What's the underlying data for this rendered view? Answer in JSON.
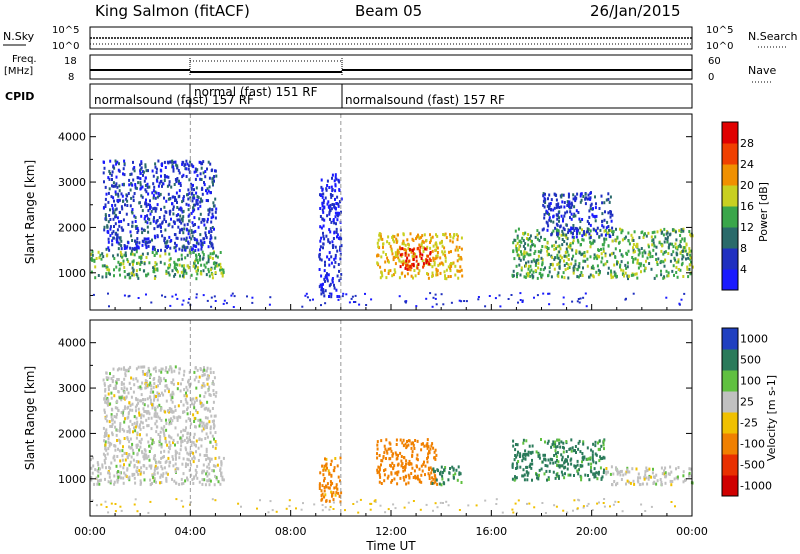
{
  "header": {
    "station": "King Salmon (fitACF)",
    "beam": "Beam 05",
    "date": "26/Jan/2015"
  },
  "status": {
    "nsky_label": "N.Sky",
    "nsky_ticks": [
      "10^5",
      "10^0"
    ],
    "nsearch_label": "N.Search",
    "freq_label": "Freq.",
    "freq_unit": "[MHz]",
    "freq_ticks": [
      "18",
      "8"
    ],
    "nave_label": "Nave",
    "nave_ticks": [
      "60",
      "0"
    ],
    "cpid_label": "CPID",
    "cpid_segments": [
      {
        "text": "normalsound (fast) 157 RF",
        "start": 0,
        "end": 4
      },
      {
        "text": "normal (fast) 151 RF",
        "start": 4,
        "end": 10
      },
      {
        "text": "normalsound (fast) 157 RF",
        "start": 10,
        "end": 24
      }
    ]
  },
  "chart_data": [
    {
      "type": "heatmap",
      "parameter": "Power",
      "colorbar_label": "Power [dB]",
      "colorbar_ticks": [
        "4",
        "8",
        "12",
        "16",
        "20",
        "24",
        "28"
      ],
      "colorbar_range": [
        0,
        32
      ],
      "xlabel": "Time UT",
      "ylabel": "Slant Range [km]",
      "xlim": [
        0,
        24
      ],
      "ylim": [
        180,
        4500
      ],
      "x_ticks": [
        "00:00",
        "04:00",
        "08:00",
        "12:00",
        "16:00",
        "20:00",
        "00:00"
      ],
      "y_ticks": [
        1000,
        2000,
        3000,
        4000
      ],
      "echo_regions": [
        {
          "t": [
            0.0,
            5.3
          ],
          "range_km": [
            900,
            1500
          ],
          "value": 14
        },
        {
          "t": [
            0.5,
            5.0
          ],
          "range_km": [
            1500,
            3500
          ],
          "value": 6
        },
        {
          "t": [
            9.1,
            10.0
          ],
          "range_km": [
            500,
            3200
          ],
          "value": 4
        },
        {
          "t": [
            11.4,
            14.8
          ],
          "range_km": [
            900,
            1900
          ],
          "value": 20
        },
        {
          "t": [
            12.3,
            13.6
          ],
          "range_km": [
            1100,
            1600
          ],
          "value": 28
        },
        {
          "t": [
            16.8,
            24.0
          ],
          "range_km": [
            900,
            2000
          ],
          "value": 14
        },
        {
          "t": [
            18.0,
            20.8
          ],
          "range_km": [
            1800,
            2800
          ],
          "value": 6
        }
      ]
    },
    {
      "type": "heatmap",
      "parameter": "Velocity",
      "colorbar_label": "Velocity [m s-1]",
      "colorbar_ticks": [
        "1000",
        "500",
        "100",
        "25",
        "-25",
        "-100",
        "-500",
        "-1000"
      ],
      "xlabel": "Time UT",
      "ylabel": "Slant Range [km]",
      "xlim": [
        0,
        24
      ],
      "ylim": [
        180,
        4500
      ],
      "x_ticks": [
        "00:00",
        "04:00",
        "08:00",
        "12:00",
        "16:00",
        "20:00",
        "00:00"
      ],
      "y_ticks": [
        1000,
        2000,
        3000,
        4000
      ],
      "echo_regions": [
        {
          "t": [
            0.0,
            5.3
          ],
          "range_km": [
            900,
            1500
          ],
          "value": 0
        },
        {
          "t": [
            0.5,
            5.0
          ],
          "range_km": [
            1500,
            3500
          ],
          "value": 0
        },
        {
          "t": [
            9.1,
            10.0
          ],
          "range_km": [
            500,
            1500
          ],
          "value": -150
        },
        {
          "t": [
            11.4,
            13.8
          ],
          "range_km": [
            900,
            1900
          ],
          "value": -200
        },
        {
          "t": [
            13.6,
            14.8
          ],
          "range_km": [
            900,
            1300
          ],
          "value": 150
        },
        {
          "t": [
            16.8,
            20.5
          ],
          "range_km": [
            1000,
            1900
          ],
          "value": 150
        },
        {
          "t": [
            20.5,
            24.0
          ],
          "range_km": [
            900,
            1300
          ],
          "value": 0
        }
      ]
    }
  ],
  "colors": {
    "power_scale": [
      "#1a1aff",
      "#2030c0",
      "#2a6a6a",
      "#3aa64a",
      "#c8d020",
      "#f09000",
      "#f04000",
      "#e00000"
    ],
    "velocity_scale": [
      "#d00000",
      "#e83000",
      "#f08000",
      "#f0c000",
      "#c0c0c0",
      "#60c040",
      "#2a7a5a",
      "#2040c0"
    ],
    "grid_line": "#999999"
  }
}
